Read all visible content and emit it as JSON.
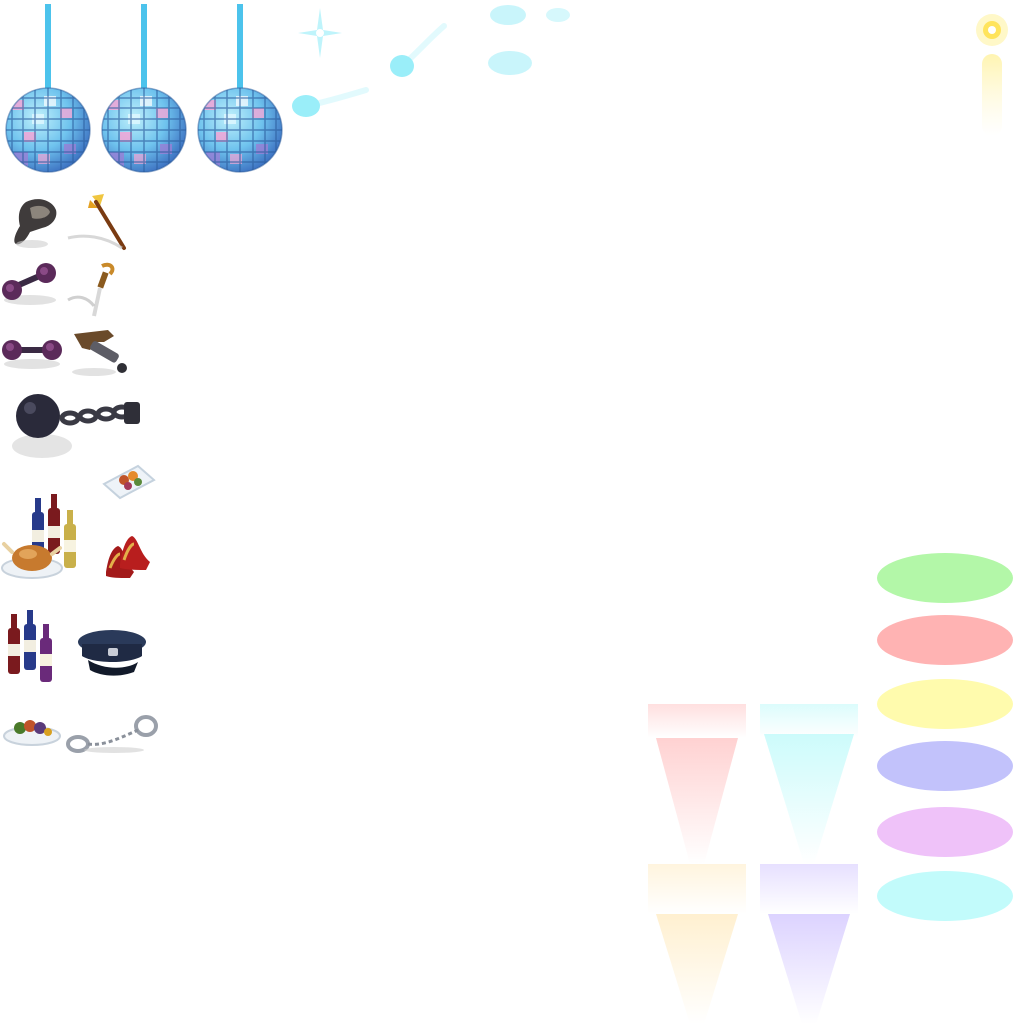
{
  "sheet": {
    "kind": "game sprite atlas",
    "background": "#ffffff"
  },
  "disco_balls": {
    "count": 3,
    "colors": {
      "tile_light": "#9fe3f7",
      "tile_mid": "#4fb3e8",
      "tile_dark": "#2a6fb8",
      "tile_pink": "#f3a6d6",
      "tile_violet": "#9a7fd6",
      "string": "#4cc3ec"
    }
  },
  "sparkles": {
    "colors": {
      "cyan": "#bff4fb",
      "cyan_mid": "#7fe3f5",
      "gold": "#fff3a8",
      "gold_core": "#ffe45c"
    }
  },
  "props": {
    "items": [
      "boot-icon",
      "arrow-icon",
      "dumbbell-icon",
      "sword-icon",
      "dumbbell-icon",
      "pistol-icon",
      "ball-and-chain-icon",
      "food-tray-icon",
      "wine-bottles-icon",
      "roast-chicken-icon",
      "red-high-heels-icon",
      "wine-bottles-icon",
      "police-cap-icon",
      "fruit-platter-icon",
      "handcuffs-icon"
    ]
  },
  "light_beams": {
    "colors": [
      "#ff9a9a",
      "#9af7f7",
      "#ffd98a",
      "#b9a6ff"
    ]
  },
  "color_swatches": {
    "colors": [
      "#b3f7a8",
      "#ffb3b3",
      "#fffbad",
      "#c2c2fb",
      "#efc2f9",
      "#c2fbfb"
    ]
  }
}
